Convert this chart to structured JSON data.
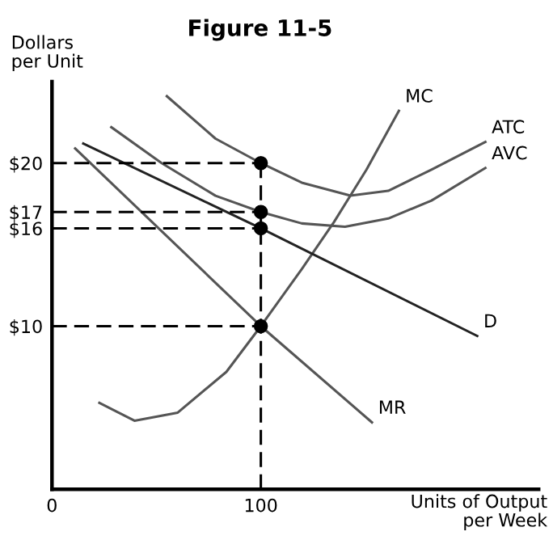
{
  "chart_data": {
    "type": "line",
    "title": "Figure 11-5",
    "ylabel": "Dollars\nper Unit",
    "xlabel": "Units of Output\nper Week",
    "xlim": [
      0,
      233
    ],
    "ylim": [
      0,
      25
    ],
    "xticks": [
      0,
      100
    ],
    "yticks": [
      {
        "value": 10,
        "label": "$10"
      },
      {
        "value": 16,
        "label": "$16"
      },
      {
        "value": 17,
        "label": "$17"
      },
      {
        "value": 20,
        "label": "$20"
      }
    ],
    "grid": false,
    "legend": false,
    "marker": "none",
    "line_style": "solid",
    "series": [
      {
        "name": "MC",
        "color": "#555555",
        "x": [
          22.7,
          39.5,
          60.2,
          83.5,
          100,
          119.6,
          135.1,
          150.6,
          166.1
        ],
        "values": [
          5.3,
          4.2,
          4.7,
          7.2,
          10,
          13.5,
          16.4,
          19.6,
          23.2
        ]
      },
      {
        "name": "ATC",
        "color": "#555555",
        "x": [
          55,
          78.3,
          100,
          119.6,
          142.9,
          161,
          181.7,
          207.5
        ],
        "values": [
          24.1,
          21.5,
          20,
          18.8,
          18.0,
          18.3,
          19.6,
          21.3
        ]
      },
      {
        "name": "AVC",
        "color": "#555555",
        "x": [
          28.4,
          52.5,
          78.3,
          100,
          119.6,
          140.3,
          161,
          181.7,
          207.5
        ],
        "values": [
          22.2,
          20.0,
          18.0,
          17,
          16.3,
          16.1,
          16.6,
          17.7,
          19.7
        ]
      },
      {
        "name": "D",
        "color": "#222222",
        "x": [
          15,
          100,
          203.6
        ],
        "values": [
          21.2,
          16,
          9.4
        ]
      },
      {
        "name": "MR",
        "color": "#555555",
        "x": [
          11.1,
          100,
          153.2
        ],
        "values": [
          20.9,
          10,
          4.1
        ]
      },
      {
        "type": "line",
        "line_style": "dashed",
        "color": "#000000",
        "x": [
          0,
          100
        ],
        "values": [
          20,
          20
        ]
      },
      {
        "type": "line",
        "line_style": "dashed",
        "color": "#000000",
        "x": [
          0,
          100
        ],
        "values": [
          17,
          17
        ]
      },
      {
        "type": "line",
        "line_style": "dashed",
        "color": "#000000",
        "x": [
          0,
          100
        ],
        "values": [
          16,
          16
        ]
      },
      {
        "type": "line",
        "line_style": "dashed",
        "color": "#000000",
        "x": [
          0,
          100
        ],
        "values": [
          10,
          10
        ]
      },
      {
        "type": "line",
        "line_style": "dashed",
        "color": "#000000",
        "x": [
          100,
          100
        ],
        "values": [
          0,
          20
        ]
      },
      {
        "type": "scatter",
        "marker": "circle",
        "color": "#000000",
        "x": [
          100,
          100,
          100,
          100
        ],
        "values": [
          20,
          17,
          16,
          10
        ]
      }
    ]
  }
}
